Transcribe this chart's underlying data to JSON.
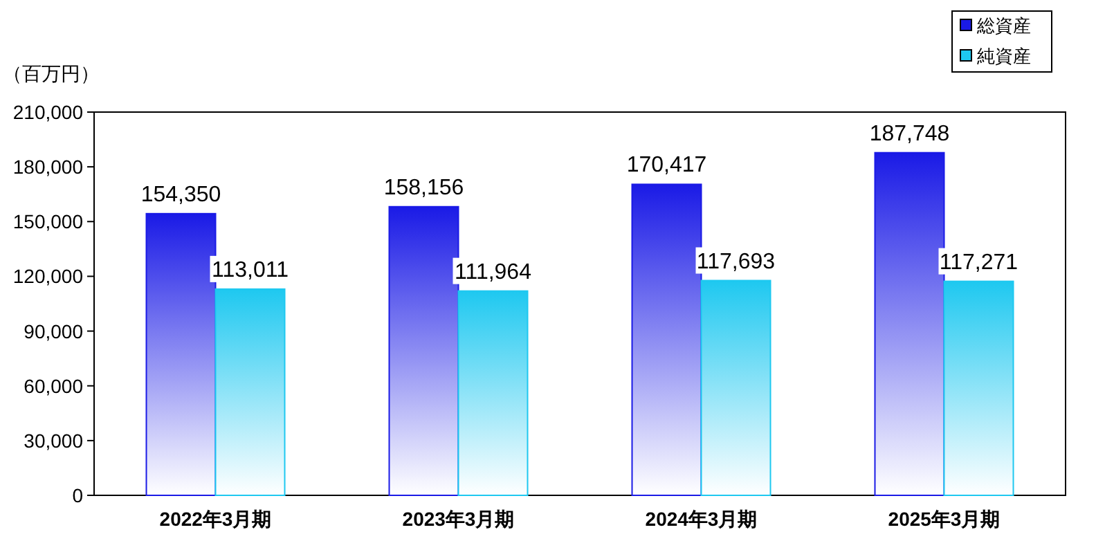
{
  "chart_data": {
    "type": "bar",
    "ylabel": "（百万円）",
    "categories": [
      "2022年3月期",
      "2023年3月期",
      "2024年3月期",
      "2025年3月期"
    ],
    "series": [
      {
        "name": "総資産",
        "color": "#1a1ae6",
        "values": [
          154350,
          158156,
          170417,
          187748
        ],
        "value_labels": [
          "154,350",
          "158,156",
          "170,417",
          "187,748"
        ]
      },
      {
        "name": "純資産",
        "color": "#1ec8f0",
        "values": [
          113011,
          111964,
          117693,
          117271
        ],
        "value_labels": [
          "113,011",
          "111,964",
          "117,693",
          "117,271"
        ]
      }
    ],
    "ylim": [
      0,
      210000
    ],
    "yticks": [
      {
        "value": 0,
        "label": "0"
      },
      {
        "value": 30000,
        "label": "30,000"
      },
      {
        "value": 60000,
        "label": "60,000"
      },
      {
        "value": 90000,
        "label": "90,000"
      },
      {
        "value": 120000,
        "label": "120,000"
      },
      {
        "value": 150000,
        "label": "150,000"
      },
      {
        "value": 180000,
        "label": "180,000"
      },
      {
        "value": 210000,
        "label": "210,000"
      }
    ],
    "legend": "top right"
  }
}
